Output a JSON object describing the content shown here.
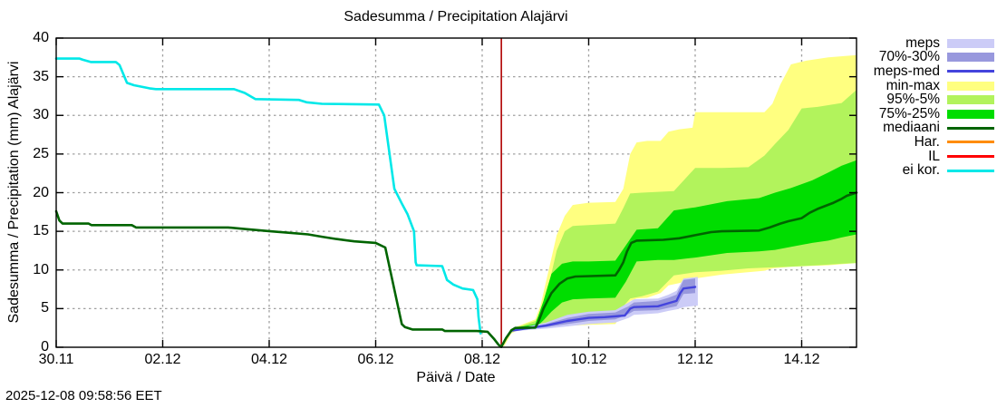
{
  "chart_data": {
    "type": "area",
    "title": "Sadesumma / Precipitation  Alajärvi",
    "xlabel": "Päivä / Date",
    "ylabel": "Sadesumma / Precipitation (mm)  Alajärvi",
    "timestamp": "2025-12-08 09:58:56 EET",
    "ylim": [
      0,
      40
    ],
    "yticks": [
      0,
      5,
      10,
      15,
      20,
      25,
      30,
      35,
      40
    ],
    "xticks": [
      {
        "day": 0,
        "label": "30.11"
      },
      {
        "day": 2,
        "label": "02.12"
      },
      {
        "day": 4,
        "label": "04.12"
      },
      {
        "day": 6,
        "label": "06.12"
      },
      {
        "day": 8,
        "label": "08.12"
      },
      {
        "day": 10,
        "label": "10.12"
      },
      {
        "day": 12,
        "label": "12.12"
      },
      {
        "day": 14,
        "label": "14.12"
      }
    ],
    "x_range_days": [
      0,
      15.03
    ],
    "now_marker_day": 8.36,
    "grid": true,
    "legend_position": "outside-right",
    "colors": {
      "meps_band": "#ccccf7",
      "meps_70_30_band": "#9898dd",
      "meps_med_line": "#4444dd",
      "minmax_band": "#ffff80",
      "p95_5_band": "#b2f35c",
      "p75_25_band": "#00dd00",
      "mediaani_line": "#006400",
      "har_line": "#ff8c00",
      "il_line": "#ff0000",
      "ei_kor_line": "#00e8e8",
      "now_line": "#b00000",
      "grid_line": "#a0a0a0",
      "axis": "#000000"
    },
    "legend": [
      {
        "label": "meps",
        "type": "band",
        "color": "#ccccf7"
      },
      {
        "label": "70%-30%",
        "type": "band",
        "color": "#9898dd"
      },
      {
        "label": "meps-med",
        "type": "line",
        "color": "#4444dd"
      },
      {
        "label": "min-max",
        "type": "band",
        "color": "#ffff80"
      },
      {
        "label": "95%-5%",
        "type": "band",
        "color": "#b2f35c"
      },
      {
        "label": "75%-25%",
        "type": "band",
        "color": "#00dd00"
      },
      {
        "label": "mediaani",
        "type": "line",
        "color": "#006400"
      },
      {
        "label": "Har.",
        "type": "line",
        "color": "#ff8c00"
      },
      {
        "label": "IL",
        "type": "line",
        "color": "#ff0000"
      },
      {
        "label": "ei kor.",
        "type": "line",
        "color": "#00e8e8"
      }
    ],
    "bands": {
      "minmax": [
        [
          8.4,
          0.0,
          0.3
        ],
        [
          8.55,
          1.8,
          2.4
        ],
        [
          8.7,
          2.3,
          2.8
        ],
        [
          9.0,
          2.5,
          3.6
        ],
        [
          9.1,
          2.6,
          5.5
        ],
        [
          9.25,
          2.7,
          10.0
        ],
        [
          9.4,
          2.7,
          14.5
        ],
        [
          9.55,
          2.8,
          17.0
        ],
        [
          9.7,
          2.8,
          18.4
        ],
        [
          10.0,
          2.9,
          18.7
        ],
        [
          10.5,
          3.0,
          18.8
        ],
        [
          10.65,
          4.5,
          20.5
        ],
        [
          10.78,
          6.0,
          25.0
        ],
        [
          10.9,
          6.3,
          26.5
        ],
        [
          11.1,
          6.4,
          26.7
        ],
        [
          11.35,
          7.0,
          26.7
        ],
        [
          11.5,
          8.0,
          27.9
        ],
        [
          11.7,
          8.3,
          28.2
        ],
        [
          11.95,
          8.8,
          28.4
        ],
        [
          12.0,
          8.9,
          30.4
        ],
        [
          12.5,
          9.4,
          30.4
        ],
        [
          12.8,
          9.6,
          30.4
        ],
        [
          13.3,
          9.9,
          30.4
        ],
        [
          13.45,
          10.2,
          31.5
        ],
        [
          13.6,
          10.3,
          34.0
        ],
        [
          13.8,
          10.4,
          36.6
        ],
        [
          14.1,
          10.5,
          37.1
        ],
        [
          14.5,
          10.6,
          37.5
        ],
        [
          15.03,
          10.9,
          37.8
        ]
      ],
      "p95_5": [
        [
          8.55,
          1.9,
          2.3
        ],
        [
          8.7,
          2.35,
          2.7
        ],
        [
          9.0,
          2.6,
          3.4
        ],
        [
          9.1,
          2.8,
          4.5
        ],
        [
          9.25,
          3.0,
          8.0
        ],
        [
          9.4,
          3.3,
          12.5
        ],
        [
          9.55,
          3.6,
          15.0
        ],
        [
          9.7,
          3.9,
          15.7
        ],
        [
          10.0,
          4.2,
          15.8
        ],
        [
          10.5,
          4.6,
          16.0
        ],
        [
          10.65,
          5.3,
          18.0
        ],
        [
          10.78,
          6.3,
          19.9
        ],
        [
          11.0,
          6.6,
          20.0
        ],
        [
          11.3,
          7.2,
          20.1
        ],
        [
          11.6,
          9.3,
          20.2
        ],
        [
          12.0,
          9.7,
          23.2
        ],
        [
          12.5,
          9.9,
          23.2
        ],
        [
          13.0,
          10.2,
          23.3
        ],
        [
          13.3,
          10.3,
          24.8
        ],
        [
          13.5,
          10.35,
          26.3
        ],
        [
          13.75,
          10.4,
          28.1
        ],
        [
          14.0,
          10.5,
          30.9
        ],
        [
          14.3,
          10.6,
          31.1
        ],
        [
          14.75,
          10.8,
          31.6
        ],
        [
          15.03,
          10.9,
          33.3
        ]
      ],
      "p75_25": [
        [
          8.55,
          2.0,
          2.2
        ],
        [
          8.7,
          2.4,
          2.6
        ],
        [
          9.0,
          2.5,
          3.0
        ],
        [
          9.15,
          3.5,
          6.0
        ],
        [
          9.3,
          4.6,
          9.5
        ],
        [
          9.5,
          5.8,
          10.8
        ],
        [
          9.7,
          6.2,
          11.1
        ],
        [
          10.0,
          6.3,
          11.1
        ],
        [
          10.5,
          6.4,
          11.2
        ],
        [
          10.7,
          8.5,
          13.2
        ],
        [
          10.9,
          11.1,
          15.2
        ],
        [
          11.3,
          11.3,
          15.4
        ],
        [
          11.6,
          11.3,
          17.7
        ],
        [
          12.0,
          11.6,
          18.1
        ],
        [
          12.6,
          12.2,
          18.9
        ],
        [
          13.2,
          12.4,
          19.3
        ],
        [
          13.5,
          12.6,
          20.0
        ],
        [
          13.8,
          13.0,
          20.6
        ],
        [
          14.2,
          13.5,
          21.6
        ],
        [
          14.5,
          13.8,
          22.6
        ],
        [
          14.75,
          14.2,
          23.5
        ],
        [
          15.03,
          14.6,
          24.2
        ]
      ],
      "meps": [
        [
          8.55,
          2.0,
          2.3
        ],
        [
          8.8,
          2.2,
          2.6
        ],
        [
          9.2,
          2.4,
          3.2
        ],
        [
          9.6,
          2.7,
          4.2
        ],
        [
          10.0,
          3.0,
          4.6
        ],
        [
          10.5,
          3.2,
          4.8
        ],
        [
          10.75,
          3.8,
          5.8
        ],
        [
          10.85,
          4.2,
          6.2
        ],
        [
          11.3,
          4.4,
          6.3
        ],
        [
          11.5,
          4.7,
          6.8
        ],
        [
          11.65,
          4.9,
          7.3
        ],
        [
          11.78,
          5.2,
          8.9
        ],
        [
          12.05,
          5.4,
          9.1
        ]
      ],
      "meps_70_30": [
        [
          8.55,
          2.1,
          2.25
        ],
        [
          8.8,
          2.3,
          2.5
        ],
        [
          9.2,
          2.6,
          3.0
        ],
        [
          9.6,
          3.0,
          3.8
        ],
        [
          10.0,
          3.4,
          4.3
        ],
        [
          10.5,
          3.6,
          4.5
        ],
        [
          10.75,
          4.3,
          5.3
        ],
        [
          10.85,
          4.7,
          5.8
        ],
        [
          11.3,
          4.8,
          6.0
        ],
        [
          11.5,
          5.1,
          6.4
        ],
        [
          11.65,
          5.3,
          6.8
        ],
        [
          11.78,
          6.9,
          8.7
        ],
        [
          12.0,
          7.0,
          8.9
        ]
      ]
    },
    "lines": {
      "ei_kor": [
        [
          0.0,
          37.35
        ],
        [
          0.44,
          37.35
        ],
        [
          0.5,
          37.2
        ],
        [
          0.65,
          36.9
        ],
        [
          1.12,
          36.9
        ],
        [
          1.19,
          36.5
        ],
        [
          1.33,
          34.2
        ],
        [
          1.46,
          33.9
        ],
        [
          1.75,
          33.5
        ],
        [
          1.87,
          33.4
        ],
        [
          3.34,
          33.4
        ],
        [
          3.54,
          32.9
        ],
        [
          3.74,
          32.1
        ],
        [
          4.56,
          32.0
        ],
        [
          4.7,
          31.7
        ],
        [
          4.99,
          31.5
        ],
        [
          6.06,
          31.4
        ],
        [
          6.16,
          30.0
        ],
        [
          6.26,
          25.0
        ],
        [
          6.35,
          20.5
        ],
        [
          6.49,
          18.6
        ],
        [
          6.6,
          17.2
        ],
        [
          6.72,
          15.0
        ],
        [
          6.75,
          11.0
        ],
        [
          6.77,
          10.6
        ],
        [
          7.25,
          10.5
        ],
        [
          7.34,
          8.7
        ],
        [
          7.46,
          8.1
        ],
        [
          7.63,
          7.6
        ],
        [
          7.83,
          7.4
        ],
        [
          7.91,
          6.2
        ],
        [
          7.93,
          4.0
        ],
        [
          7.97,
          1.8
        ]
      ],
      "mediaani_observed": [
        [
          0.0,
          17.6
        ],
        [
          0.06,
          16.4
        ],
        [
          0.12,
          16.0
        ],
        [
          0.61,
          16.0
        ],
        [
          0.66,
          15.8
        ],
        [
          1.42,
          15.8
        ],
        [
          1.5,
          15.5
        ],
        [
          3.23,
          15.5
        ],
        [
          3.54,
          15.3
        ],
        [
          4.02,
          15.0
        ],
        [
          4.39,
          14.8
        ],
        [
          4.73,
          14.6
        ],
        [
          4.99,
          14.3
        ],
        [
          5.26,
          14.0
        ],
        [
          5.6,
          13.7
        ],
        [
          6.0,
          13.5
        ],
        [
          6.18,
          12.9
        ],
        [
          6.49,
          3.0
        ],
        [
          6.55,
          2.6
        ],
        [
          6.69,
          2.3
        ],
        [
          7.25,
          2.3
        ],
        [
          7.3,
          2.1
        ],
        [
          7.9,
          2.1
        ],
        [
          8.1,
          2.0
        ],
        [
          8.22,
          1.1
        ],
        [
          8.31,
          0.3
        ],
        [
          8.36,
          0.05
        ]
      ],
      "mediaani_forecast": [
        [
          8.36,
          0.05
        ],
        [
          8.45,
          1.2
        ],
        [
          8.55,
          2.2
        ],
        [
          8.62,
          2.5
        ],
        [
          9.0,
          2.55
        ],
        [
          9.05,
          3.2
        ],
        [
          9.15,
          5.0
        ],
        [
          9.3,
          7.0
        ],
        [
          9.45,
          8.2
        ],
        [
          9.6,
          8.9
        ],
        [
          9.75,
          9.15
        ],
        [
          10.5,
          9.3
        ],
        [
          10.57,
          10.0
        ],
        [
          10.65,
          11.0
        ],
        [
          10.72,
          12.4
        ],
        [
          10.8,
          13.5
        ],
        [
          10.9,
          13.8
        ],
        [
          11.4,
          13.9
        ],
        [
          11.7,
          14.1
        ],
        [
          12.0,
          14.5
        ],
        [
          12.3,
          14.9
        ],
        [
          12.5,
          15.0
        ],
        [
          13.2,
          15.1
        ],
        [
          13.4,
          15.5
        ],
        [
          13.6,
          16.0
        ],
        [
          13.75,
          16.3
        ],
        [
          14.0,
          16.7
        ],
        [
          14.15,
          17.4
        ],
        [
          14.3,
          17.9
        ],
        [
          14.45,
          18.3
        ],
        [
          14.6,
          18.7
        ],
        [
          14.75,
          19.2
        ],
        [
          14.85,
          19.6
        ],
        [
          15.03,
          20.0
        ]
      ],
      "meps_med": [
        [
          8.45,
          1.2
        ],
        [
          8.55,
          2.15
        ],
        [
          8.8,
          2.4
        ],
        [
          9.2,
          2.8
        ],
        [
          9.6,
          3.4
        ],
        [
          10.0,
          3.8
        ],
        [
          10.3,
          3.9
        ],
        [
          10.68,
          4.1
        ],
        [
          10.78,
          5.0
        ],
        [
          10.85,
          5.2
        ],
        [
          11.3,
          5.3
        ],
        [
          11.5,
          5.7
        ],
        [
          11.65,
          6.0
        ],
        [
          11.72,
          7.0
        ],
        [
          11.78,
          7.6
        ],
        [
          12.0,
          7.8
        ]
      ]
    }
  }
}
